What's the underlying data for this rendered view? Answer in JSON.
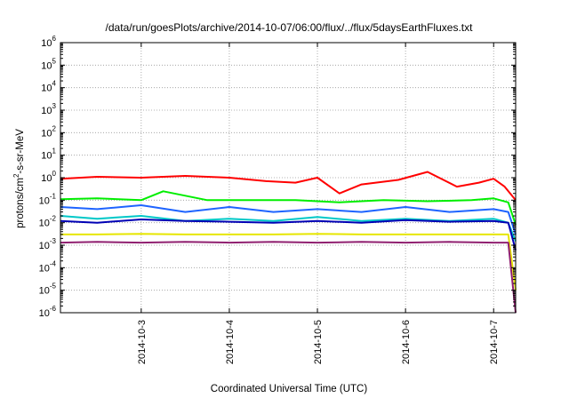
{
  "chart_data": {
    "type": "line",
    "title": "/data/run/goesPlots/archive/2014-10-07/06:00/flux/../flux/5daysEarthFluxes.txt",
    "xlabel": "Coordinated Universal Time (UTC)",
    "ylabel": {
      "base": "protons/cm",
      "sup": "2",
      "rest": "-s-sr-MeV"
    },
    "y_scale": "log",
    "ylim": [
      1e-06,
      1000000.0
    ],
    "xlim": [
      "2014-10-02T02:00",
      "2014-10-07T06:00"
    ],
    "y_ticks": [
      {
        "base": "10",
        "exp": "-6",
        "value": 1e-06
      },
      {
        "base": "10",
        "exp": "-5",
        "value": 1e-05
      },
      {
        "base": "10",
        "exp": "-4",
        "value": 0.0001
      },
      {
        "base": "10",
        "exp": "-3",
        "value": 0.001
      },
      {
        "base": "10",
        "exp": "-2",
        "value": 0.01
      },
      {
        "base": "10",
        "exp": "-1",
        "value": 0.1
      },
      {
        "base": "10",
        "exp": "0",
        "value": 1
      },
      {
        "base": "10",
        "exp": "1",
        "value": 10
      },
      {
        "base": "10",
        "exp": "2",
        "value": 100
      },
      {
        "base": "10",
        "exp": "3",
        "value": 1000
      },
      {
        "base": "10",
        "exp": "4",
        "value": 10000
      },
      {
        "base": "10",
        "exp": "5",
        "value": 100000
      },
      {
        "base": "10",
        "exp": "6",
        "value": 1000000
      }
    ],
    "x_ticks": [
      "2014-10-3",
      "2014-10-4",
      "2014-10-5",
      "2014-10-6",
      "2014-10-7"
    ],
    "grid": true,
    "legend": "none",
    "series": [
      {
        "color": "#ff0000",
        "x": [
          "2014-10-02T02:00",
          "2014-10-02T12:00",
          "2014-10-03T00:00",
          "2014-10-03T12:00",
          "2014-10-04T00:00",
          "2014-10-04T10:00",
          "2014-10-04T18:00",
          "2014-10-05T00:00",
          "2014-10-05T06:00",
          "2014-10-05T12:00",
          "2014-10-05T22:00",
          "2014-10-06T06:00",
          "2014-10-06T14:00",
          "2014-10-06T20:00",
          "2014-10-07T00:00",
          "2014-10-07T03:00",
          "2014-10-07T06:00"
        ],
        "y": [
          0.9,
          1.1,
          1.0,
          1.2,
          1.0,
          0.7,
          0.6,
          1.0,
          0.2,
          0.5,
          0.8,
          1.8,
          0.4,
          0.6,
          0.9,
          0.4,
          0.1
        ]
      },
      {
        "color": "#00ee00",
        "x": [
          "2014-10-02T02:00",
          "2014-10-02T12:00",
          "2014-10-03T00:00",
          "2014-10-03T06:00",
          "2014-10-03T18:00",
          "2014-10-04T06:00",
          "2014-10-04T18:00",
          "2014-10-05T06:00",
          "2014-10-05T18:00",
          "2014-10-06T06:00",
          "2014-10-06T18:00",
          "2014-10-07T00:00",
          "2014-10-07T04:00",
          "2014-10-07T06:00"
        ],
        "y": [
          0.11,
          0.12,
          0.1,
          0.25,
          0.1,
          0.1,
          0.1,
          0.08,
          0.1,
          0.09,
          0.1,
          0.12,
          0.08,
          0.008
        ]
      },
      {
        "color": "#1e64ff",
        "x": [
          "2014-10-02T02:00",
          "2014-10-02T12:00",
          "2014-10-03T00:00",
          "2014-10-03T12:00",
          "2014-10-04T00:00",
          "2014-10-04T12:00",
          "2014-10-05T00:00",
          "2014-10-05T12:00",
          "2014-10-06T00:00",
          "2014-10-06T12:00",
          "2014-10-07T00:00",
          "2014-10-07T04:00",
          "2014-10-07T06:00"
        ],
        "y": [
          0.05,
          0.04,
          0.06,
          0.03,
          0.05,
          0.03,
          0.04,
          0.03,
          0.05,
          0.03,
          0.04,
          0.03,
          0.003
        ]
      },
      {
        "color": "#00c8c8",
        "x": [
          "2014-10-02T02:00",
          "2014-10-02T12:00",
          "2014-10-03T00:00",
          "2014-10-03T12:00",
          "2014-10-04T00:00",
          "2014-10-04T12:00",
          "2014-10-05T00:00",
          "2014-10-05T12:00",
          "2014-10-06T00:00",
          "2014-10-06T12:00",
          "2014-10-07T00:00",
          "2014-10-07T04:00",
          "2014-10-07T06:00"
        ],
        "y": [
          0.02,
          0.015,
          0.02,
          0.012,
          0.015,
          0.012,
          0.018,
          0.012,
          0.015,
          0.012,
          0.015,
          0.01,
          0.0015
        ]
      },
      {
        "color": "#0000b4",
        "x": [
          "2014-10-02T02:00",
          "2014-10-02T12:00",
          "2014-10-03T00:00",
          "2014-10-03T12:00",
          "2014-10-04T00:00",
          "2014-10-04T12:00",
          "2014-10-05T00:00",
          "2014-10-05T12:00",
          "2014-10-06T00:00",
          "2014-10-06T12:00",
          "2014-10-07T00:00",
          "2014-10-07T04:00",
          "2014-10-07T06:00"
        ],
        "y": [
          0.012,
          0.01,
          0.014,
          0.012,
          0.011,
          0.01,
          0.012,
          0.01,
          0.013,
          0.011,
          0.012,
          0.01,
          0.0006
        ]
      },
      {
        "color": "#e6e600",
        "x": [
          "2014-10-02T02:00",
          "2014-10-02T12:00",
          "2014-10-03T00:00",
          "2014-10-03T12:00",
          "2014-10-04T00:00",
          "2014-10-04T12:00",
          "2014-10-05T00:00",
          "2014-10-05T12:00",
          "2014-10-06T00:00",
          "2014-10-06T12:00",
          "2014-10-07T00:00",
          "2014-10-07T04:00",
          "2014-10-07T06:00"
        ],
        "y": [
          0.003,
          0.003,
          0.0032,
          0.003,
          0.003,
          0.003,
          0.0032,
          0.003,
          0.003,
          0.003,
          0.003,
          0.003,
          1e-05
        ]
      },
      {
        "color": "#902070",
        "x": [
          "2014-10-02T02:00",
          "2014-10-02T12:00",
          "2014-10-03T00:00",
          "2014-10-03T12:00",
          "2014-10-04T00:00",
          "2014-10-04T12:00",
          "2014-10-05T00:00",
          "2014-10-05T12:00",
          "2014-10-06T00:00",
          "2014-10-06T12:00",
          "2014-10-07T00:00",
          "2014-10-07T04:00",
          "2014-10-07T06:00"
        ],
        "y": [
          0.0013,
          0.0014,
          0.0013,
          0.0014,
          0.0013,
          0.0014,
          0.0013,
          0.0014,
          0.0013,
          0.0014,
          0.0013,
          0.0013,
          1e-06
        ]
      }
    ]
  }
}
